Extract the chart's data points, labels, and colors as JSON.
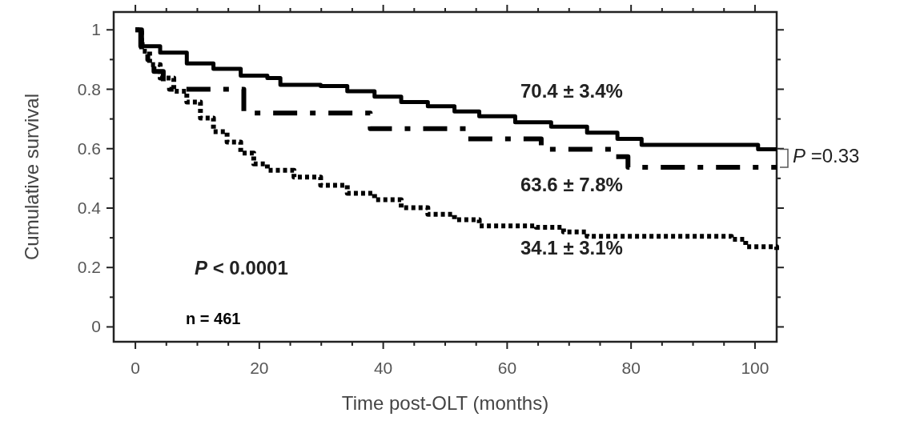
{
  "chart_data": {
    "type": "step",
    "xlabel": "Time post-OLT (months)",
    "ylabel": "Cumulative survival",
    "xlim": [
      -3.5,
      103.5
    ],
    "ylim": [
      -0.05,
      1.06
    ],
    "xticks": [
      0,
      {
        "value": 5,
        "label": null
      },
      {
        "value": 10,
        "label": null
      },
      {
        "value": 15,
        "label": null
      },
      20,
      {
        "value": 25,
        "label": null
      },
      {
        "value": 30,
        "label": null
      },
      {
        "value": 35,
        "label": null
      },
      40,
      {
        "value": 45,
        "label": null
      },
      {
        "value": 50,
        "label": null
      },
      {
        "value": 55,
        "label": null
      },
      60,
      {
        "value": 65,
        "label": null
      },
      {
        "value": 70,
        "label": null
      },
      {
        "value": 75,
        "label": null
      },
      80,
      {
        "value": 85,
        "label": null
      },
      {
        "value": 90,
        "label": null
      },
      {
        "value": 95,
        "label": null
      },
      100
    ],
    "yticks": [
      0,
      {
        "value": 0.1,
        "label": null
      },
      0.2,
      {
        "value": 0.3,
        "label": null
      },
      0.4,
      {
        "value": 0.5,
        "label": null
      },
      0.6,
      {
        "value": 0.7,
        "label": null
      },
      0.8,
      {
        "value": 0.9,
        "label": null
      },
      1
    ],
    "series": [
      {
        "color": "#000000",
        "line_style": "solid",
        "x": [
          0,
          0.8,
          4,
          8.3,
          12.6,
          17,
          21.3,
          23.4,
          29.9,
          34.2,
          38.6,
          42.9,
          47.2,
          51.5,
          55.5,
          61.3,
          67.1,
          72.9,
          77.8,
          81.7,
          100.5,
          103.5
        ],
        "values": [
          1,
          0.945,
          0.923,
          0.887,
          0.869,
          0.846,
          0.838,
          0.815,
          0.811,
          0.793,
          0.775,
          0.757,
          0.743,
          0.725,
          0.709,
          0.689,
          0.674,
          0.654,
          0.633,
          0.613,
          0.598,
          0.598
        ]
      },
      {
        "color": "#000000",
        "line_style": "dashed",
        "x": [
          0,
          1,
          2,
          3,
          4.5,
          5.5,
          17.5,
          37.9,
          53.5,
          65.5,
          77.5,
          79.5,
          103.5
        ],
        "values": [
          1,
          0.95,
          0.9,
          0.86,
          0.82,
          0.8,
          0.72,
          0.667,
          0.633,
          0.598,
          0.573,
          0.537,
          0.537
        ]
      },
      {
        "color": "#000000",
        "line_style": "dotted",
        "x": [
          0,
          1,
          2.3,
          4,
          6.2,
          8.3,
          10.5,
          12.6,
          14.8,
          17,
          19.1,
          21.3,
          25.6,
          29.9,
          34.2,
          38.6,
          42.9,
          47.2,
          51.5,
          55.5,
          64.7,
          69.1,
          72.9,
          96.2,
          98.5,
          103.5
        ],
        "values": [
          1,
          0.928,
          0.883,
          0.838,
          0.793,
          0.757,
          0.703,
          0.657,
          0.622,
          0.585,
          0.549,
          0.527,
          0.504,
          0.477,
          0.45,
          0.428,
          0.401,
          0.379,
          0.361,
          0.34,
          0.335,
          0.32,
          0.305,
          0.295,
          0.27,
          0.259
        ]
      }
    ],
    "annotations": [
      "70.4 ± 3.4%",
      "63.6 ± 7.8%",
      "34.1 ± 3.1%",
      "P < 0.0001",
      "n = 461",
      "P =0.33"
    ]
  }
}
